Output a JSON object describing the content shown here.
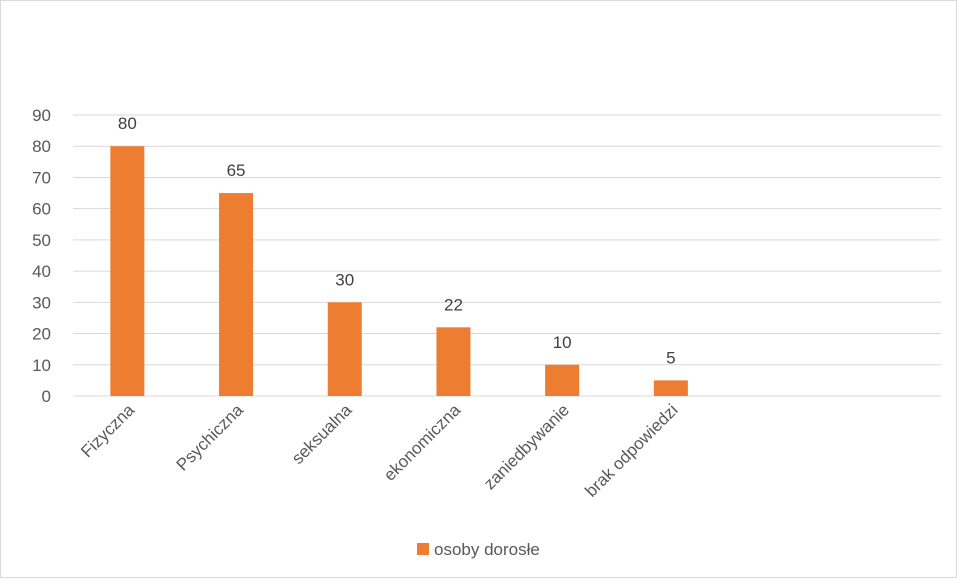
{
  "chart_data": {
    "type": "bar",
    "categories": [
      "Fizyczna",
      "Psychiczna",
      "seksualna",
      "ekonomiczna",
      "zaniedbywanie",
      "brak odpowiedzi"
    ],
    "series": [
      {
        "name": "osoby dorosłe",
        "values": [
          80,
          65,
          30,
          22,
          10,
          5
        ],
        "color": "#ed7d31"
      }
    ],
    "ylim": [
      0,
      90
    ],
    "yticks": [
      0,
      10,
      20,
      30,
      40,
      50,
      60,
      70,
      80,
      90
    ],
    "grid": true,
    "legend": "bottom",
    "title": "",
    "xlabel": "",
    "ylabel": ""
  }
}
